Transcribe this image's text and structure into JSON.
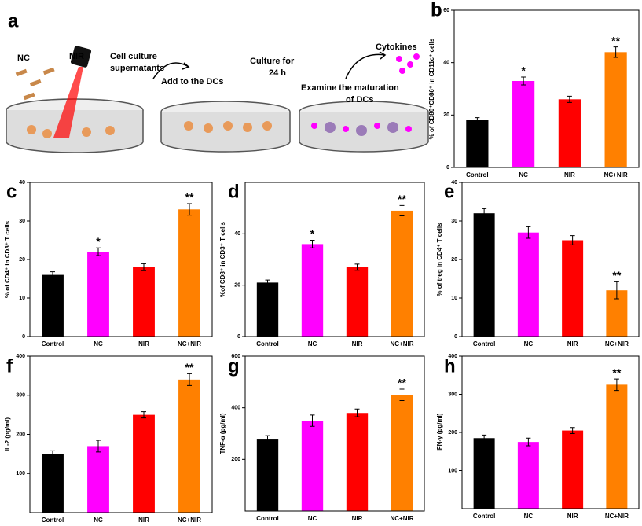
{
  "panel_a": {
    "label": "a",
    "nc": "NC",
    "nir": "NIR",
    "step1": [
      "Cell culture",
      "supernatants"
    ],
    "step2": "Add to the DCs",
    "step3": [
      "Culture for",
      "24 h"
    ],
    "step4": [
      "Examine the maturation",
      "of DCs"
    ],
    "cytokines": "Cytokines"
  },
  "chart_data": [
    {
      "type": "bar",
      "label": "b",
      "ylabel": "% of CD80⁺CD86⁺ in CD11c⁺ cells",
      "categories": [
        "Control",
        "NC",
        "NIR",
        "NC+NIR"
      ],
      "values": [
        18,
        33,
        26,
        44
      ],
      "errors": [
        1,
        1.5,
        1.2,
        2
      ],
      "colors": [
        "#000000",
        "#ff00ff",
        "#ff0000",
        "#ff8000"
      ],
      "stars": [
        null,
        "*",
        null,
        "**"
      ],
      "ylim": [
        0,
        60
      ],
      "yticks": [
        0,
        20,
        40,
        60
      ]
    },
    {
      "type": "bar",
      "label": "c",
      "ylabel": "% of CD4⁺ in CD3⁺ T cells",
      "categories": [
        "Control",
        "NC",
        "NIR",
        "NC+NIR"
      ],
      "values": [
        16,
        22,
        18,
        33
      ],
      "errors": [
        0.8,
        1,
        0.9,
        1.5
      ],
      "colors": [
        "#000000",
        "#ff00ff",
        "#ff0000",
        "#ff8000"
      ],
      "stars": [
        null,
        "*",
        null,
        "**"
      ],
      "ylim": [
        0,
        40
      ],
      "yticks": [
        0,
        10,
        20,
        30,
        40
      ]
    },
    {
      "type": "bar",
      "label": "d",
      "ylabel": "%of CD8⁺ in CD3⁺ T cells",
      "categories": [
        "Control",
        "NC",
        "NIR",
        "NC+NIR"
      ],
      "values": [
        21,
        36,
        27,
        49
      ],
      "errors": [
        1,
        1.5,
        1.2,
        2
      ],
      "colors": [
        "#000000",
        "#ff00ff",
        "#ff0000",
        "#ff8000"
      ],
      "stars": [
        null,
        "*",
        null,
        "**"
      ],
      "ylim": [
        0,
        60
      ],
      "yticks": [
        0,
        20,
        40
      ]
    },
    {
      "type": "bar",
      "label": "e",
      "ylabel": "% of treg in CD4⁺ T cells",
      "categories": [
        "Control",
        "NC",
        "NIR",
        "NC+NIR"
      ],
      "values": [
        32,
        27,
        25,
        12
      ],
      "errors": [
        1.2,
        1.5,
        1.2,
        2.2
      ],
      "colors": [
        "#000000",
        "#ff00ff",
        "#ff0000",
        "#ff8000"
      ],
      "stars": [
        null,
        null,
        null,
        "**"
      ],
      "ylim": [
        0,
        40
      ],
      "yticks": [
        0,
        10,
        20,
        30,
        40
      ]
    },
    {
      "type": "bar",
      "label": "f",
      "ylabel": "IL-2 (pg/ml)",
      "categories": [
        "Control",
        "NC",
        "NIR",
        "NC+NIR"
      ],
      "values": [
        150,
        170,
        250,
        340
      ],
      "errors": [
        8,
        15,
        8,
        15
      ],
      "colors": [
        "#000000",
        "#ff00ff",
        "#ff0000",
        "#ff8000"
      ],
      "stars": [
        null,
        null,
        null,
        "**"
      ],
      "ylim": [
        0,
        400
      ],
      "yticks": [
        100,
        200,
        300,
        400
      ]
    },
    {
      "type": "bar",
      "label": "g",
      "ylabel": "TNF-α (pg/ml)",
      "categories": [
        "Control",
        "NC",
        "NIR",
        "NC+NIR"
      ],
      "values": [
        280,
        350,
        380,
        450
      ],
      "errors": [
        12,
        22,
        15,
        22
      ],
      "colors": [
        "#000000",
        "#ff00ff",
        "#ff0000",
        "#ff8000"
      ],
      "stars": [
        null,
        null,
        null,
        "**"
      ],
      "ylim": [
        0,
        600
      ],
      "yticks": [
        200,
        400,
        600
      ]
    },
    {
      "type": "bar",
      "label": "h",
      "ylabel": "IFN-γ (pg/ml)",
      "categories": [
        "Control",
        "NC",
        "NIR",
        "NC+NIR"
      ],
      "values": [
        185,
        175,
        205,
        325
      ],
      "errors": [
        8,
        10,
        8,
        15
      ],
      "colors": [
        "#000000",
        "#ff00ff",
        "#ff0000",
        "#ff8000"
      ],
      "stars": [
        null,
        null,
        null,
        "**"
      ],
      "ylim": [
        0,
        400
      ],
      "yticks": [
        100,
        200,
        300,
        400
      ]
    }
  ]
}
